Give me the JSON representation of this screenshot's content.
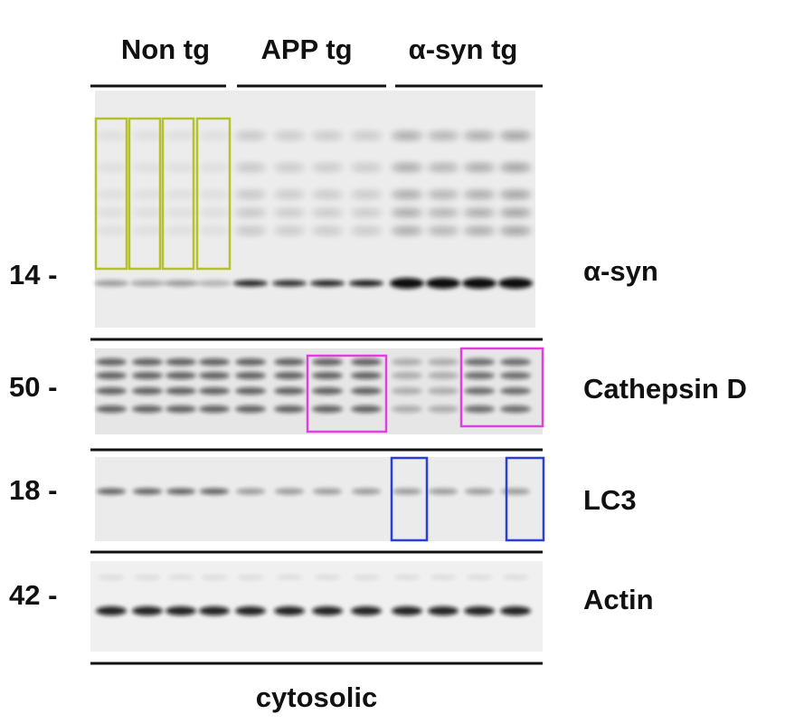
{
  "groups": [
    "Non tg",
    "APP tg",
    "α-syn tg"
  ],
  "markers": [
    "14 -",
    "50 -",
    "18 -",
    "42 -"
  ],
  "proteins": [
    "α-syn",
    "Cathepsin D",
    "LC3",
    "Actin"
  ],
  "fraction": "cytosolic"
}
